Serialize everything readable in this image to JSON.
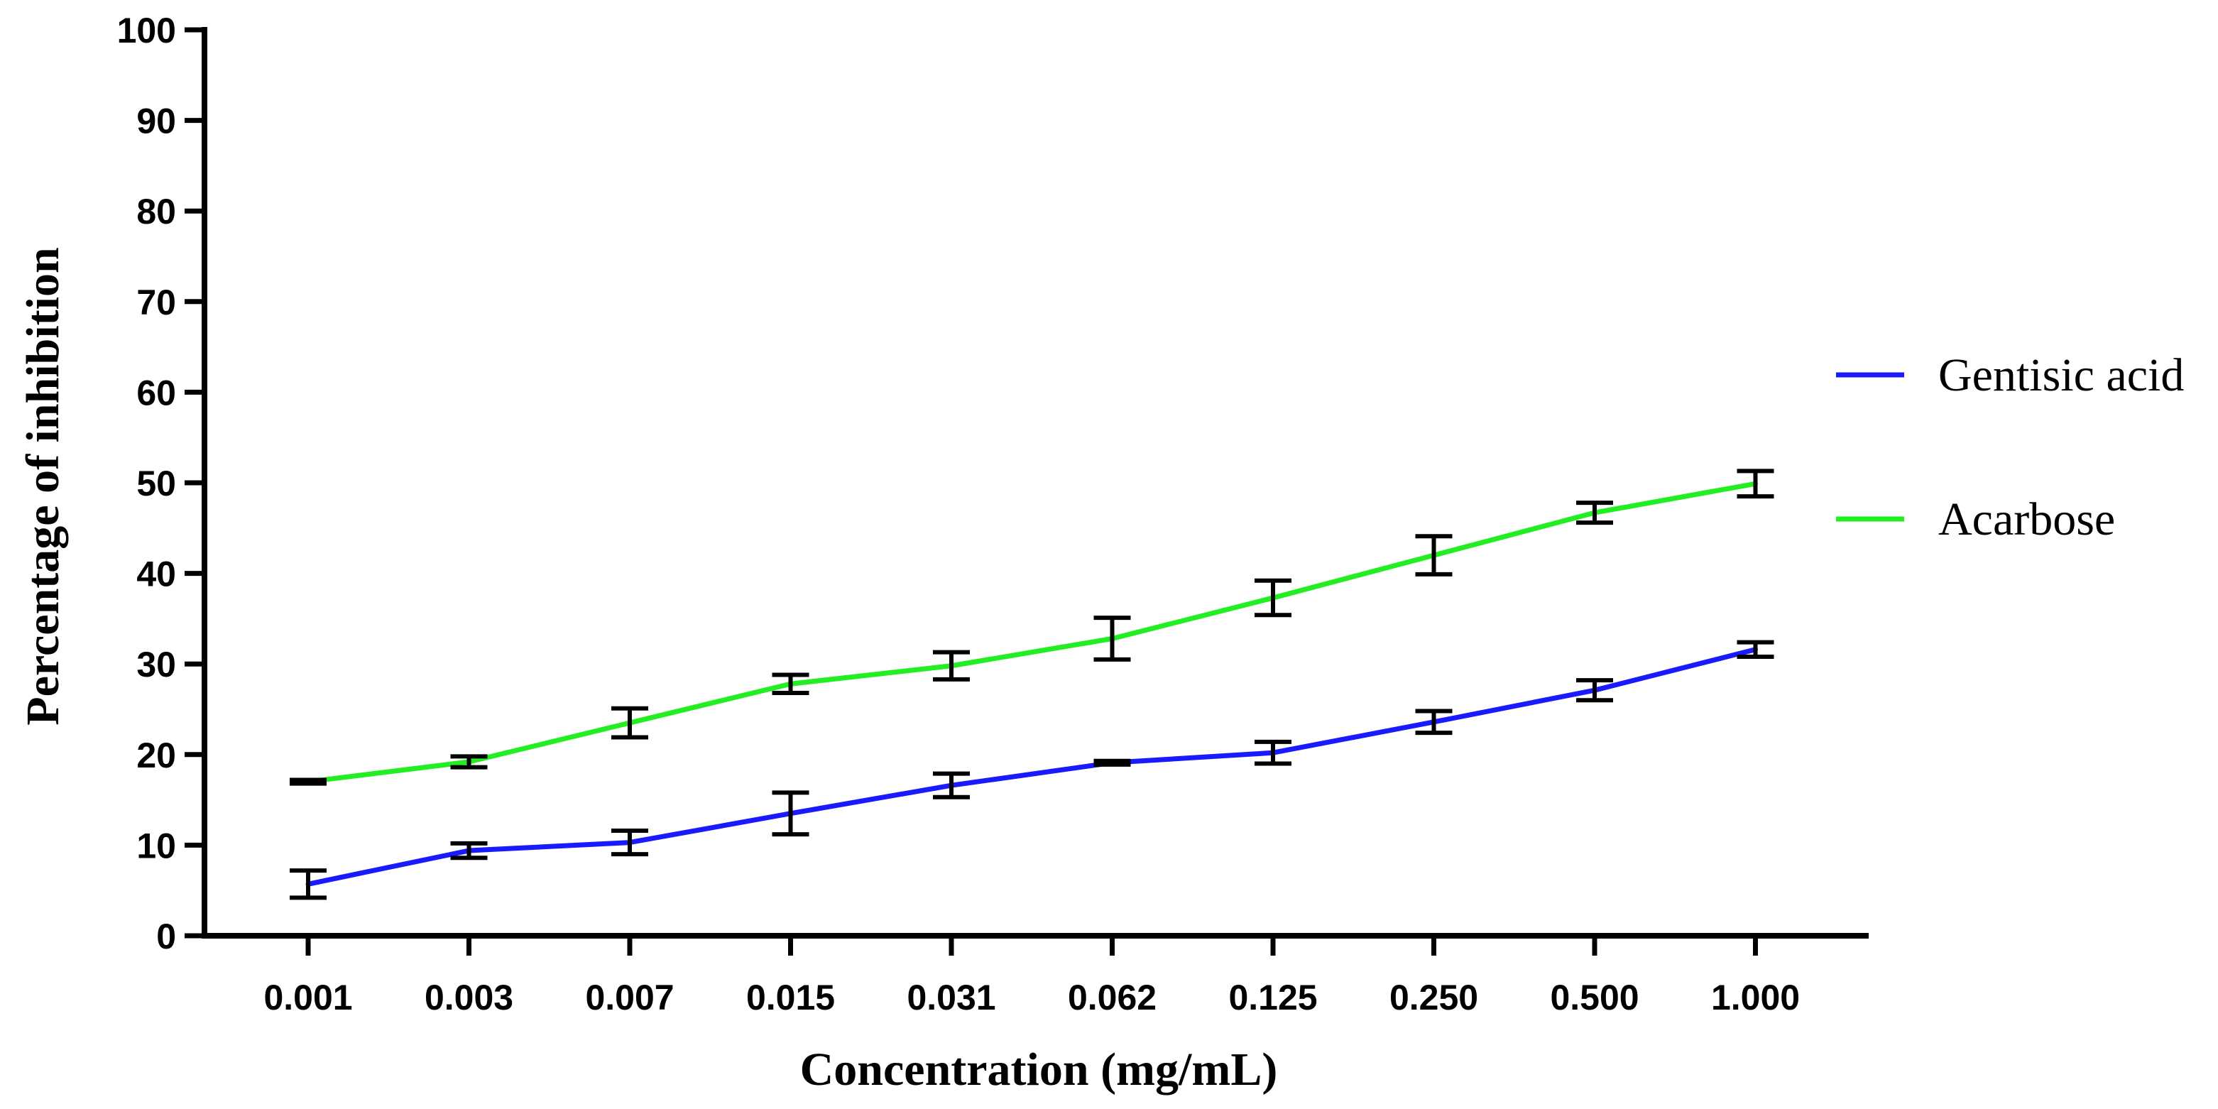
{
  "chart_data": {
    "type": "line",
    "title": "",
    "xlabel": "Concentration (mg/mL)",
    "ylabel": "Percentage of inhibition",
    "categories": [
      "0.001",
      "0.003",
      "0.007",
      "0.015",
      "0.031",
      "0.062",
      "0.125",
      "0.250",
      "0.500",
      "1.000"
    ],
    "ylim": [
      0,
      100
    ],
    "yticks": [
      "0",
      "10",
      "20",
      "30",
      "40",
      "50",
      "60",
      "70",
      "80",
      "90",
      "100"
    ],
    "grid": false,
    "legend_position": "right",
    "series": [
      {
        "name": "Gentisic acid",
        "color": "#1a1aff",
        "values": [
          5.7,
          9.4,
          10.3,
          13.5,
          16.6,
          19.1,
          20.2,
          23.6,
          27.1,
          31.6
        ],
        "errors": [
          1.5,
          0.8,
          1.3,
          2.3,
          1.3,
          0.2,
          1.2,
          1.2,
          1.1,
          0.8
        ]
      },
      {
        "name": "Acarbose",
        "color": "#22ee22",
        "values": [
          17.0,
          19.2,
          23.5,
          27.8,
          29.8,
          32.8,
          37.3,
          42.0,
          46.7,
          49.9
        ],
        "errors": [
          0.2,
          0.6,
          1.6,
          1.0,
          1.5,
          2.3,
          1.9,
          2.1,
          1.1,
          1.4
        ]
      }
    ]
  }
}
